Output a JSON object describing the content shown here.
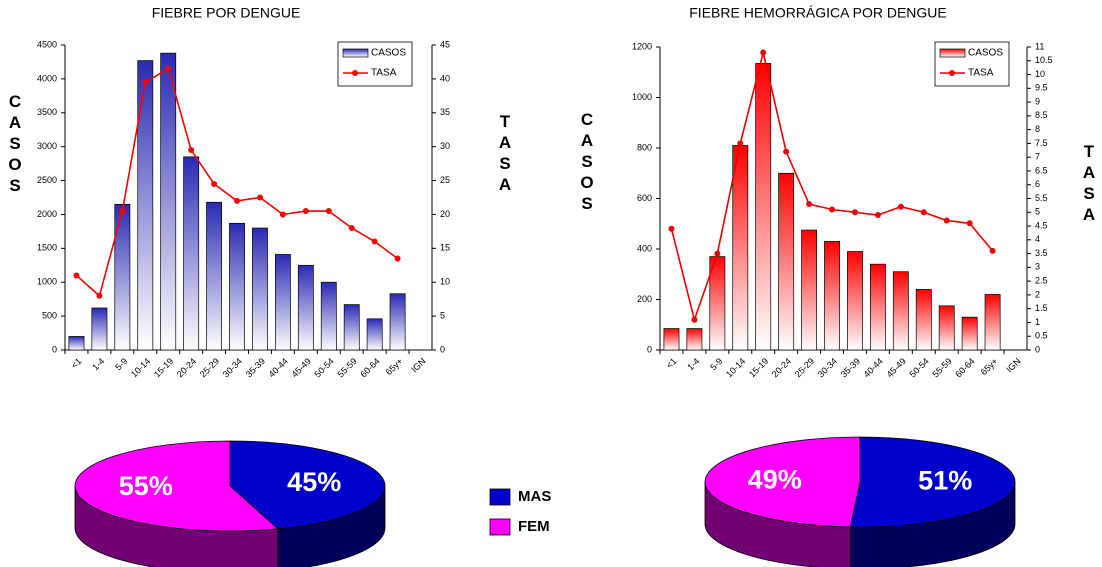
{
  "chart_data": [
    {
      "type": "combo",
      "title": "FIEBRE POR DENGUE",
      "ylabel": "CASOS",
      "y2label": "TASA",
      "categories": [
        "<1",
        "1-4",
        "5-9",
        "10-14",
        "15-19",
        "20-24",
        "25-29",
        "30-34",
        "35-39",
        "40-44",
        "45-49",
        "50-54",
        "55-59",
        "60-64",
        "65y+",
        "IGN"
      ],
      "series": [
        {
          "name": "CASOS",
          "color": "#2a2ab4",
          "values": [
            200,
            620,
            2150,
            4270,
            4380,
            2850,
            2180,
            1870,
            1800,
            1410,
            1250,
            1000,
            670,
            460,
            830,
            null
          ]
        },
        {
          "name": "TASA",
          "color": "#ff0000",
          "axis": "y2",
          "values": [
            11,
            8,
            20.5,
            39.5,
            41.5,
            29.5,
            24.5,
            22,
            22.5,
            20,
            20.5,
            20.5,
            18,
            16,
            13.5,
            null
          ]
        }
      ],
      "ylim": [
        0,
        4500
      ],
      "yticks": [
        0,
        500,
        1000,
        1500,
        2000,
        2500,
        3000,
        3500,
        4000,
        4500
      ],
      "y2lim": [
        0,
        45
      ],
      "y2ticks": [
        0,
        5,
        10,
        15,
        20,
        25,
        30,
        35,
        40,
        45
      ]
    },
    {
      "type": "combo",
      "title": "FIEBRE HEMORRÁGICA POR DENGUE",
      "ylabel": "CASOS",
      "y2label": "TASA",
      "categories": [
        "<1",
        "1-4",
        "5-9",
        "10-14",
        "15-19",
        "20-24",
        "25-29",
        "30-34",
        "35-39",
        "40-44",
        "45-49",
        "50-54",
        "55-59",
        "60-64",
        "65y+",
        "IGN"
      ],
      "series": [
        {
          "name": "CASOS",
          "color": "#ff0000",
          "values": [
            85,
            85,
            370,
            810,
            1135,
            700,
            475,
            430,
            390,
            340,
            310,
            240,
            175,
            130,
            220,
            null
          ]
        },
        {
          "name": "TASA",
          "color": "#ee0000",
          "axis": "y2",
          "values": [
            4.4,
            1.1,
            3.5,
            7.5,
            10.8,
            7.2,
            5.3,
            5.1,
            5.0,
            4.9,
            5.2,
            5.0,
            4.7,
            4.6,
            3.6,
            null
          ]
        }
      ],
      "ylim": [
        0,
        1200
      ],
      "yticks": [
        0,
        200,
        400,
        600,
        800,
        1000,
        1200
      ],
      "y2lim": [
        0,
        11
      ],
      "y2ticks": [
        0,
        0.5,
        1,
        1.5,
        2,
        2.5,
        3,
        3.5,
        4,
        4.5,
        5,
        5.5,
        6,
        6.5,
        7,
        7.5,
        8,
        8.5,
        9,
        9.5,
        10,
        10.5,
        11
      ]
    },
    {
      "type": "pie",
      "values": [
        45,
        55
      ],
      "value_labels": [
        "45%",
        "55%"
      ]
    },
    {
      "type": "pie",
      "values": [
        51,
        49
      ],
      "value_labels": [
        "51%",
        "49%"
      ]
    }
  ],
  "pie_legend": {
    "series": [
      {
        "name": "MAS",
        "color": "#0000cc"
      },
      {
        "name": "FEM",
        "color": "#ff00ff"
      }
    ]
  }
}
